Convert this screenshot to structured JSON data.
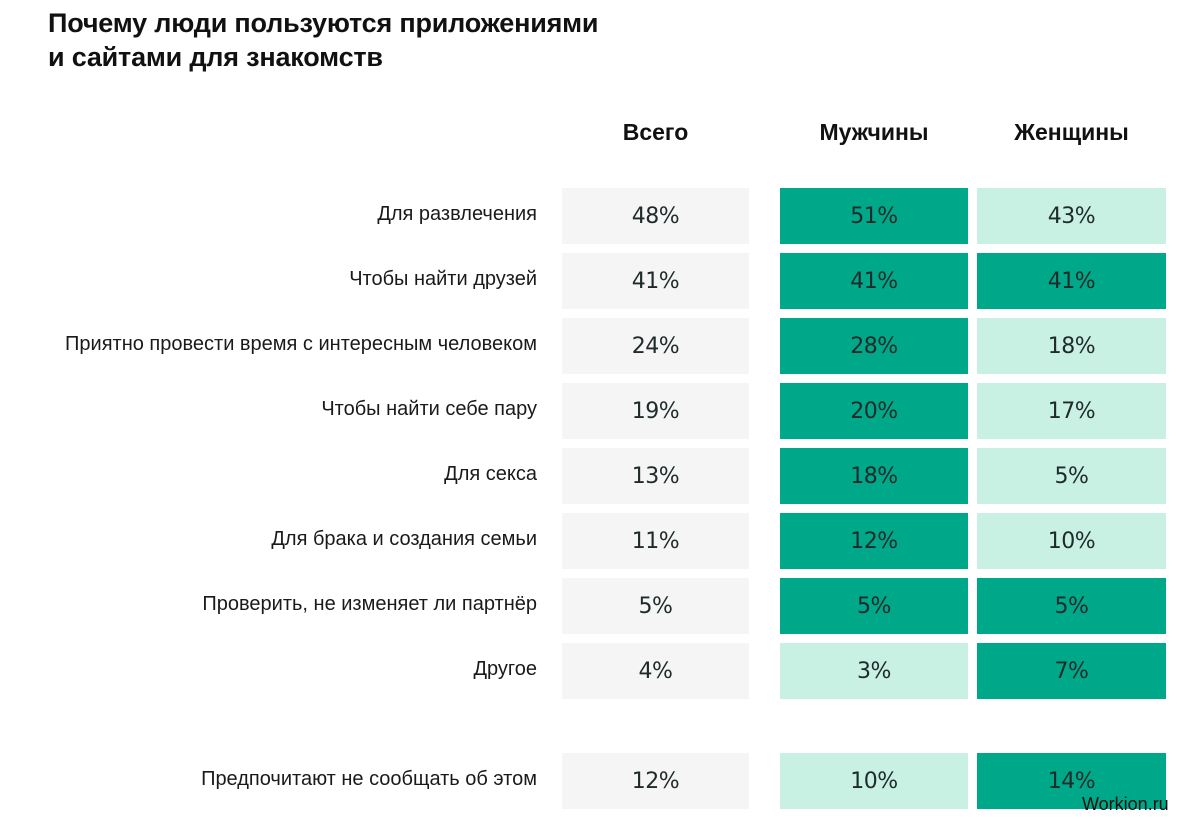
{
  "title_lines": [
    "Почему люди пользуются приложениями",
    "и сайтами для знакомств"
  ],
  "colors": {
    "total_bg": "#f5f5f5",
    "high": "#00a88a",
    "low": "#c8f0e3"
  },
  "watermark": "Workion.ru",
  "chart_data": {
    "type": "table",
    "title": "Почему люди пользуются приложениями и сайтами для знакомств",
    "columns": [
      "Всего",
      "Мужчины",
      "Женщины"
    ],
    "rows": [
      {
        "label": "Для развлечения",
        "values": [
          "48%",
          "51%",
          "43%"
        ],
        "highlight": [
          "total",
          "high",
          "low"
        ]
      },
      {
        "label": "Чтобы найти друзей",
        "values": [
          "41%",
          "41%",
          "41%"
        ],
        "highlight": [
          "total",
          "high",
          "high"
        ]
      },
      {
        "label": "Приятно провести время с интересным человеком",
        "values": [
          "24%",
          "28%",
          "18%"
        ],
        "highlight": [
          "total",
          "high",
          "low"
        ]
      },
      {
        "label": "Чтобы найти себе пару",
        "values": [
          "19%",
          "20%",
          "17%"
        ],
        "highlight": [
          "total",
          "high",
          "low"
        ]
      },
      {
        "label": "Для секса",
        "values": [
          "13%",
          "18%",
          "5%"
        ],
        "highlight": [
          "total",
          "high",
          "low"
        ]
      },
      {
        "label": "Для брака и создания семьи",
        "values": [
          "11%",
          "12%",
          "10%"
        ],
        "highlight": [
          "total",
          "high",
          "low"
        ]
      },
      {
        "label": "Проверить, не изменяет ли партнёр",
        "values": [
          "5%",
          "5%",
          "5%"
        ],
        "highlight": [
          "total",
          "high",
          "high"
        ]
      },
      {
        "label": "Другое",
        "values": [
          "4%",
          "3%",
          "7%"
        ],
        "highlight": [
          "total",
          "low",
          "high"
        ]
      },
      {
        "label": "Предпочитают не сообщать об этом",
        "values": [
          "12%",
          "10%",
          "14%"
        ],
        "highlight": [
          "total",
          "low",
          "high"
        ],
        "separated": true
      }
    ]
  }
}
